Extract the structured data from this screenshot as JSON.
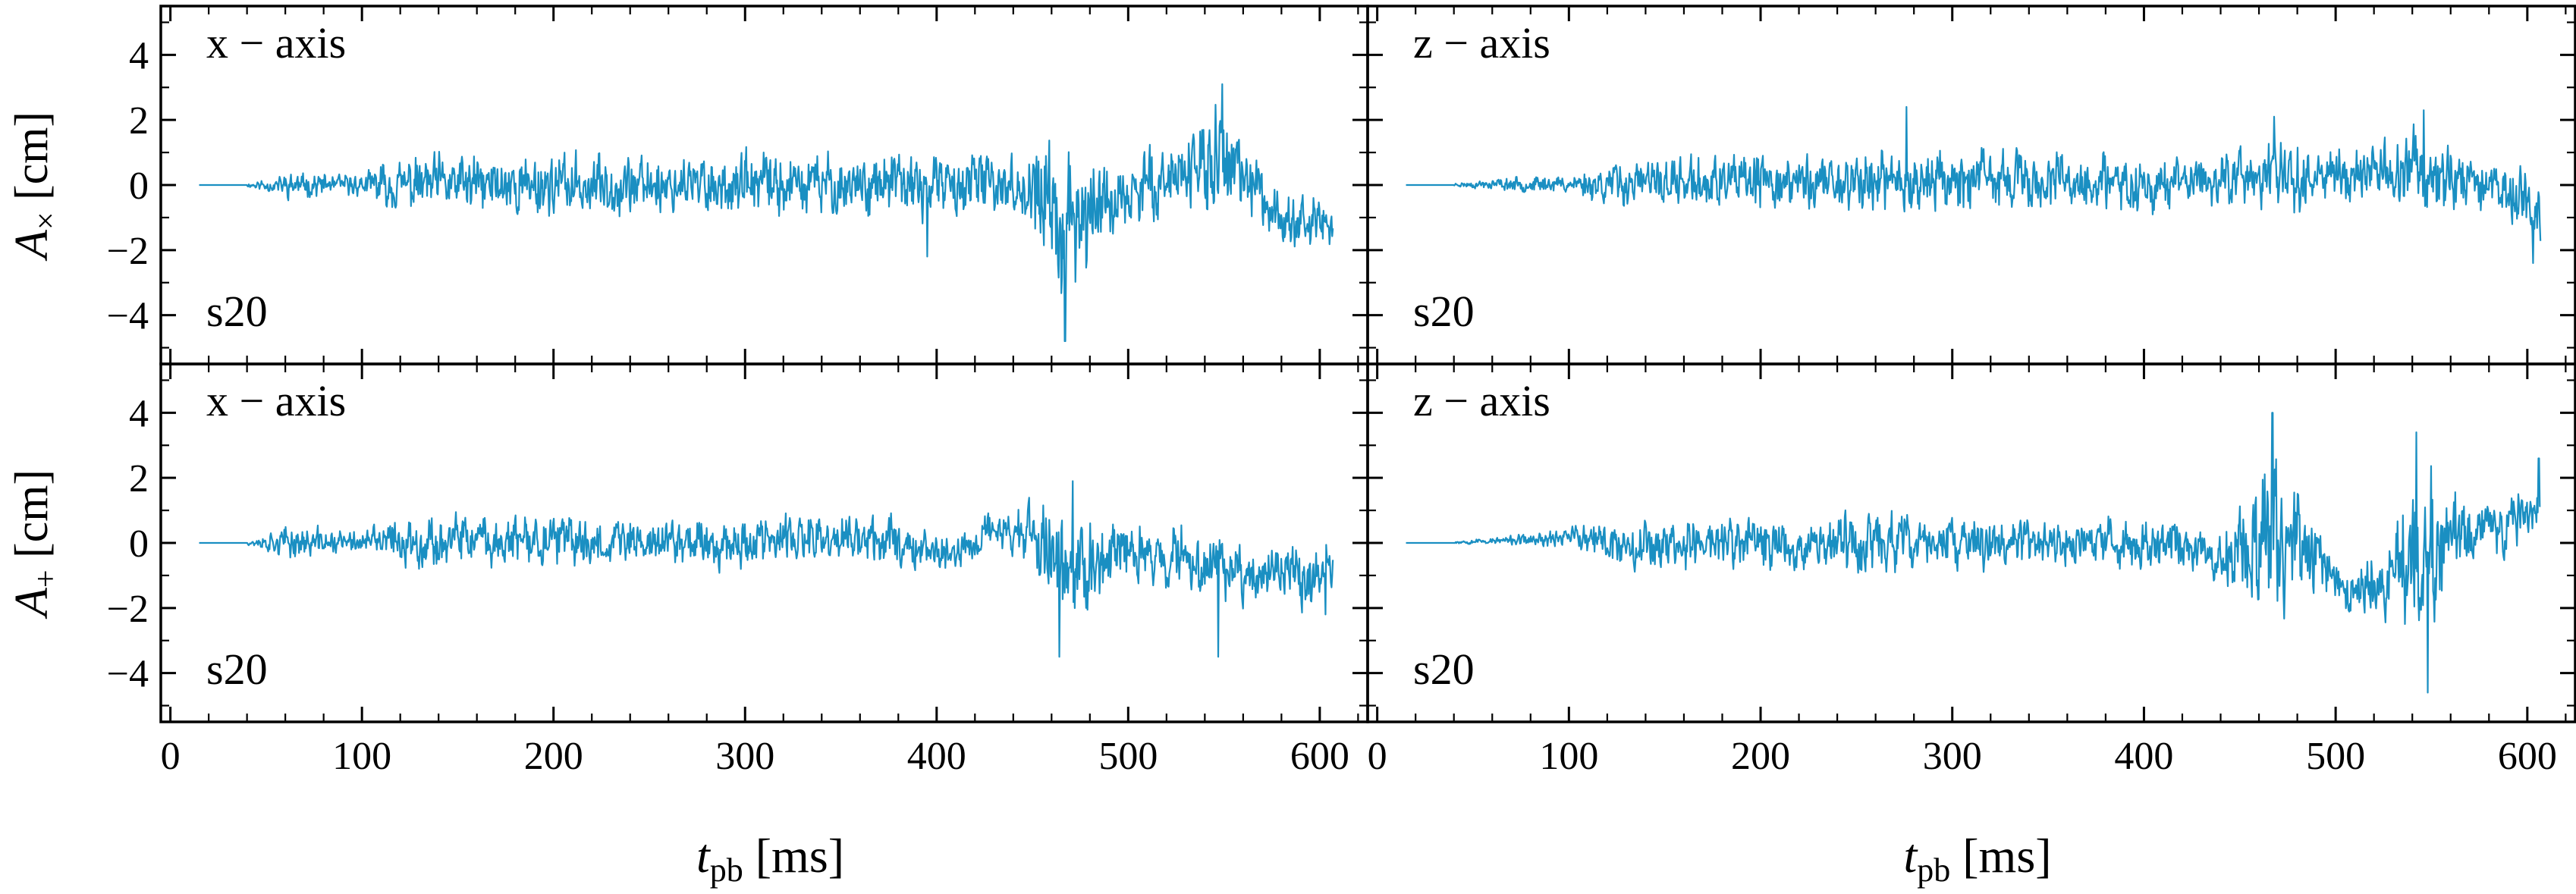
{
  "figure": {
    "xlabel_main": "t",
    "xlabel_sub": "pb",
    "xlabel_unit": " [ms]"
  },
  "colors": {
    "line": "#1a8fc2",
    "frame": "#000000"
  },
  "chart_data": [
    {
      "id": "tl",
      "type": "line",
      "row": 0,
      "col": 0,
      "label": "x − axis",
      "model": "s20",
      "ylabel_main": "A",
      "ylabel_sub": "×",
      "ylabel_unit": " [cm]",
      "xlim": [
        -5,
        625
      ],
      "ylim": [
        -5.5,
        5.5
      ],
      "xticks": [
        0,
        100,
        200,
        300,
        400,
        500,
        600
      ],
      "yticks": [
        -4,
        -2,
        0,
        2,
        4
      ],
      "series": [
        {
          "t_start": 15,
          "t_end": 607,
          "quiet_until": 40,
          "envelope": [
            [
              15,
              0
            ],
            [
              40,
              0.05
            ],
            [
              60,
              0.35
            ],
            [
              100,
              0.3
            ],
            [
              115,
              0.7
            ],
            [
              140,
              0.85
            ],
            [
              200,
              0.85
            ],
            [
              300,
              0.85
            ],
            [
              380,
              0.9
            ],
            [
              420,
              0.85
            ],
            [
              440,
              0.75
            ],
            [
              455,
              1.6
            ],
            [
              470,
              2.3
            ],
            [
              490,
              1.2
            ],
            [
              520,
              0.8
            ],
            [
              535,
              1.2
            ],
            [
              548,
              1.8
            ],
            [
              560,
              0.9
            ],
            [
              590,
              0.7
            ],
            [
              607,
              0.9
            ]
          ],
          "trend": [
            [
              15,
              0
            ],
            [
              440,
              0
            ],
            [
              455,
              -0.5
            ],
            [
              468,
              -1.6
            ],
            [
              485,
              -0.7
            ],
            [
              510,
              -0.1
            ],
            [
              530,
              0.5
            ],
            [
              548,
              0.7
            ],
            [
              560,
              0.2
            ],
            [
              580,
              -0.9
            ],
            [
              600,
              -1.2
            ],
            [
              607,
              -1.6
            ]
          ],
          "spikes": [
            [
              467,
              -4.8
            ],
            [
              549,
              3.1
            ],
            [
              395,
              -2.2
            ]
          ],
          "seed": 11
        }
      ]
    },
    {
      "id": "tr",
      "type": "line",
      "row": 0,
      "col": 1,
      "label": "z − axis",
      "model": "s20",
      "ylabel_main": "",
      "ylabel_sub": "",
      "ylabel_unit": "",
      "xlim": [
        -5,
        625
      ],
      "ylim": [
        -5.5,
        5.5
      ],
      "xticks": [
        0,
        100,
        200,
        300,
        400,
        500,
        600
      ],
      "yticks": [
        -4,
        -2,
        0,
        2,
        4
      ],
      "series": [
        {
          "t_start": 15,
          "t_end": 607,
          "quiet_until": 40,
          "envelope": [
            [
              15,
              0
            ],
            [
              40,
              0.05
            ],
            [
              70,
              0.2
            ],
            [
              100,
              0.25
            ],
            [
              120,
              0.6
            ],
            [
              150,
              0.7
            ],
            [
              200,
              0.75
            ],
            [
              260,
              0.85
            ],
            [
              300,
              0.85
            ],
            [
              350,
              0.8
            ],
            [
              400,
              0.8
            ],
            [
              430,
              0.7
            ],
            [
              460,
              0.9
            ],
            [
              470,
              1.1
            ],
            [
              500,
              0.8
            ],
            [
              530,
              0.9
            ],
            [
              545,
              1.1
            ],
            [
              570,
              0.8
            ],
            [
              607,
              0.8
            ]
          ],
          "trend": [
            [
              15,
              0
            ],
            [
              250,
              0.1
            ],
            [
              300,
              0.2
            ],
            [
              400,
              0
            ],
            [
              460,
              0.3
            ],
            [
              545,
              0.5
            ],
            [
              580,
              0
            ],
            [
              600,
              -0.5
            ],
            [
              607,
              -1.3
            ]
          ],
          "spikes": [
            [
              276,
              2.4
            ],
            [
              468,
              2.1
            ],
            [
              546,
              2.3
            ],
            [
              603,
              -2.4
            ]
          ],
          "seed": 23
        }
      ]
    },
    {
      "id": "bl",
      "type": "line",
      "row": 1,
      "col": 0,
      "label": "x − axis",
      "model": "s20",
      "ylabel_main": "A",
      "ylabel_sub": "+",
      "ylabel_unit": " [cm]",
      "xlim": [
        -5,
        625
      ],
      "ylim": [
        -5.5,
        5.5
      ],
      "xticks": [
        0,
        100,
        200,
        300,
        400,
        500,
        600
      ],
      "yticks": [
        -4,
        -2,
        0,
        2,
        4
      ],
      "series": [
        {
          "t_start": 15,
          "t_end": 607,
          "quiet_until": 40,
          "envelope": [
            [
              15,
              0
            ],
            [
              40,
              0.05
            ],
            [
              60,
              0.45
            ],
            [
              100,
              0.35
            ],
            [
              115,
              0.6
            ],
            [
              140,
              0.7
            ],
            [
              200,
              0.7
            ],
            [
              300,
              0.7
            ],
            [
              380,
              0.7
            ],
            [
              400,
              0.6
            ],
            [
              430,
              0.5
            ],
            [
              450,
              0.9
            ],
            [
              465,
              1.6
            ],
            [
              480,
              1.3
            ],
            [
              500,
              0.8
            ],
            [
              520,
              0.9
            ],
            [
              540,
              1.0
            ],
            [
              560,
              0.8
            ],
            [
              607,
              0.9
            ]
          ],
          "trend": [
            [
              15,
              0
            ],
            [
              380,
              0.1
            ],
            [
              410,
              -0.4
            ],
            [
              430,
              0.5
            ],
            [
              450,
              0.2
            ],
            [
              470,
              -0.8
            ],
            [
              495,
              -0.3
            ],
            [
              540,
              -0.5
            ],
            [
              570,
              -1.0
            ],
            [
              607,
              -0.9
            ]
          ],
          "spikes": [
            [
              464,
              -3.5
            ],
            [
              547,
              -3.5
            ],
            [
              471,
              1.9
            ],
            [
              603,
              -2.2
            ]
          ],
          "seed": 37
        }
      ]
    },
    {
      "id": "br",
      "type": "line",
      "row": 1,
      "col": 1,
      "label": "z − axis",
      "model": "s20",
      "ylabel_main": "",
      "ylabel_sub": "",
      "ylabel_unit": "",
      "xlim": [
        -5,
        625
      ],
      "ylim": [
        -5.5,
        5.5
      ],
      "xticks": [
        0,
        100,
        200,
        300,
        400,
        500,
        600
      ],
      "yticks": [
        -4,
        -2,
        0,
        2,
        4
      ],
      "series": [
        {
          "t_start": 15,
          "t_end": 607,
          "quiet_until": 40,
          "envelope": [
            [
              15,
              0
            ],
            [
              40,
              0.05
            ],
            [
              70,
              0.12
            ],
            [
              100,
              0.3
            ],
            [
              120,
              0.65
            ],
            [
              180,
              0.8
            ],
            [
              250,
              0.85
            ],
            [
              300,
              0.7
            ],
            [
              400,
              0.65
            ],
            [
              440,
              0.7
            ],
            [
              455,
              1.6
            ],
            [
              467,
              2.6
            ],
            [
              480,
              1.5
            ],
            [
              500,
              0.6
            ],
            [
              520,
              0.9
            ],
            [
              540,
              2.0
            ],
            [
              550,
              2.5
            ],
            [
              565,
              1.0
            ],
            [
              607,
              0.6
            ]
          ],
          "trend": [
            [
              15,
              0
            ],
            [
              90,
              0.1
            ],
            [
              100,
              0.3
            ],
            [
              110,
              0
            ],
            [
              420,
              0
            ],
            [
              440,
              -0.5
            ],
            [
              455,
              0.2
            ],
            [
              470,
              0.3
            ],
            [
              490,
              -0.5
            ],
            [
              510,
              -1.6
            ],
            [
              525,
              -1.0
            ],
            [
              545,
              -0.2
            ],
            [
              560,
              0.3
            ],
            [
              590,
              0.5
            ],
            [
              607,
              1.3
            ]
          ],
          "spikes": [
            [
              467,
              4.0
            ],
            [
              542,
              3.4
            ],
            [
              548,
              -4.6
            ],
            [
              606,
              2.6
            ]
          ],
          "seed": 53
        }
      ]
    }
  ]
}
